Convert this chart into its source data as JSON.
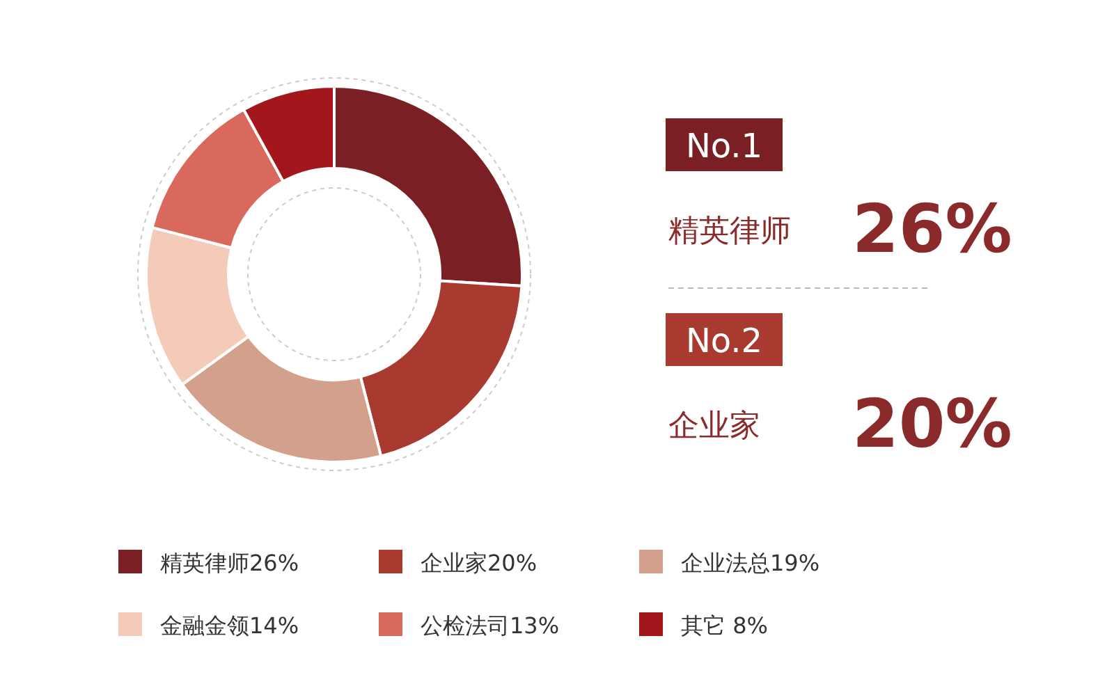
{
  "chart_data": {
    "type": "donut",
    "categories": [
      "精英律师26%",
      "企业家20%",
      "企业法总19%",
      "金融金领14%",
      "公检法司13%",
      "其它 8%"
    ],
    "values": [
      26,
      20,
      19,
      14,
      13,
      8
    ],
    "colors": [
      "#7a1f24",
      "#a83a30",
      "#d3a08c",
      "#f3cbb8",
      "#d9695c",
      "#a3171c"
    ],
    "legend": "bottom",
    "annotations": [
      "No.1",
      "精英律师",
      "26%",
      "No.2",
      "企业家",
      "20%"
    ]
  }
}
